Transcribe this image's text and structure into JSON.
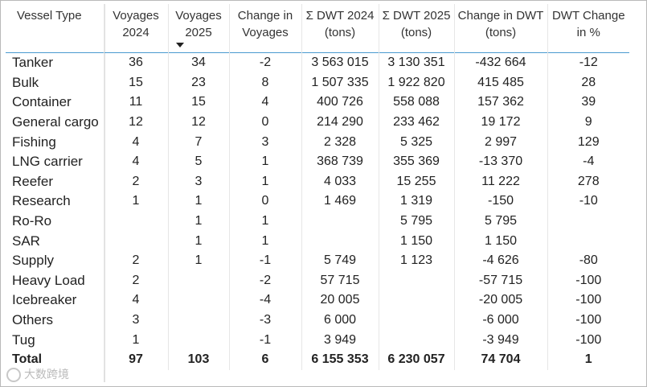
{
  "columns": [
    {
      "label": "Vessel Type"
    },
    {
      "label": "Voyages 2024"
    },
    {
      "label": "Voyages 2025",
      "sorted": "desc"
    },
    {
      "label": "Change in Voyages"
    },
    {
      "label": "Σ DWT 2024 (tons)"
    },
    {
      "label": "Σ DWT 2025 (tons)"
    },
    {
      "label": "Change in DWT (tons)"
    },
    {
      "label": "DWT Change in %"
    }
  ],
  "rows": [
    [
      "Tanker",
      "36",
      "34",
      "-2",
      "3 563 015",
      "3 130 351",
      "-432 664",
      "-12"
    ],
    [
      "Bulk",
      "15",
      "23",
      "8",
      "1 507 335",
      "1 922 820",
      "415 485",
      "28"
    ],
    [
      "Container",
      "11",
      "15",
      "4",
      "400 726",
      "558 088",
      "157 362",
      "39"
    ],
    [
      "General cargo",
      "12",
      "12",
      "0",
      "214 290",
      "233 462",
      "19 172",
      "9"
    ],
    [
      "Fishing",
      "4",
      "7",
      "3",
      "2 328",
      "5 325",
      "2 997",
      "129"
    ],
    [
      "LNG carrier",
      "4",
      "5",
      "1",
      "368 739",
      "355 369",
      "-13 370",
      "-4"
    ],
    [
      "Reefer",
      "2",
      "3",
      "1",
      "4 033",
      "15 255",
      "11 222",
      "278"
    ],
    [
      "Research",
      "1",
      "1",
      "0",
      "1 469",
      "1 319",
      "-150",
      "-10"
    ],
    [
      "Ro-Ro",
      "",
      "1",
      "1",
      "",
      "5 795",
      "5 795",
      ""
    ],
    [
      "SAR",
      "",
      "1",
      "1",
      "",
      "1 150",
      "1 150",
      ""
    ],
    [
      "Supply",
      "2",
      "1",
      "-1",
      "5 749",
      "1 123",
      "-4 626",
      "-80"
    ],
    [
      "Heavy Load",
      "2",
      "",
      "-2",
      "57 715",
      "",
      "-57 715",
      "-100"
    ],
    [
      "Icebreaker",
      "4",
      "",
      "-4",
      "20 005",
      "",
      "-20 005",
      "-100"
    ],
    [
      "Others",
      "3",
      "",
      "-3",
      "6 000",
      "",
      "-6 000",
      "-100"
    ],
    [
      "Tug",
      "1",
      "",
      "-1",
      "3 949",
      "",
      "-3 949",
      "-100"
    ]
  ],
  "total": [
    "Total",
    "97",
    "103",
    "6",
    "6 155 353",
    "6 230 057",
    "74 704",
    "1"
  ],
  "watermark": "大数跨境"
}
